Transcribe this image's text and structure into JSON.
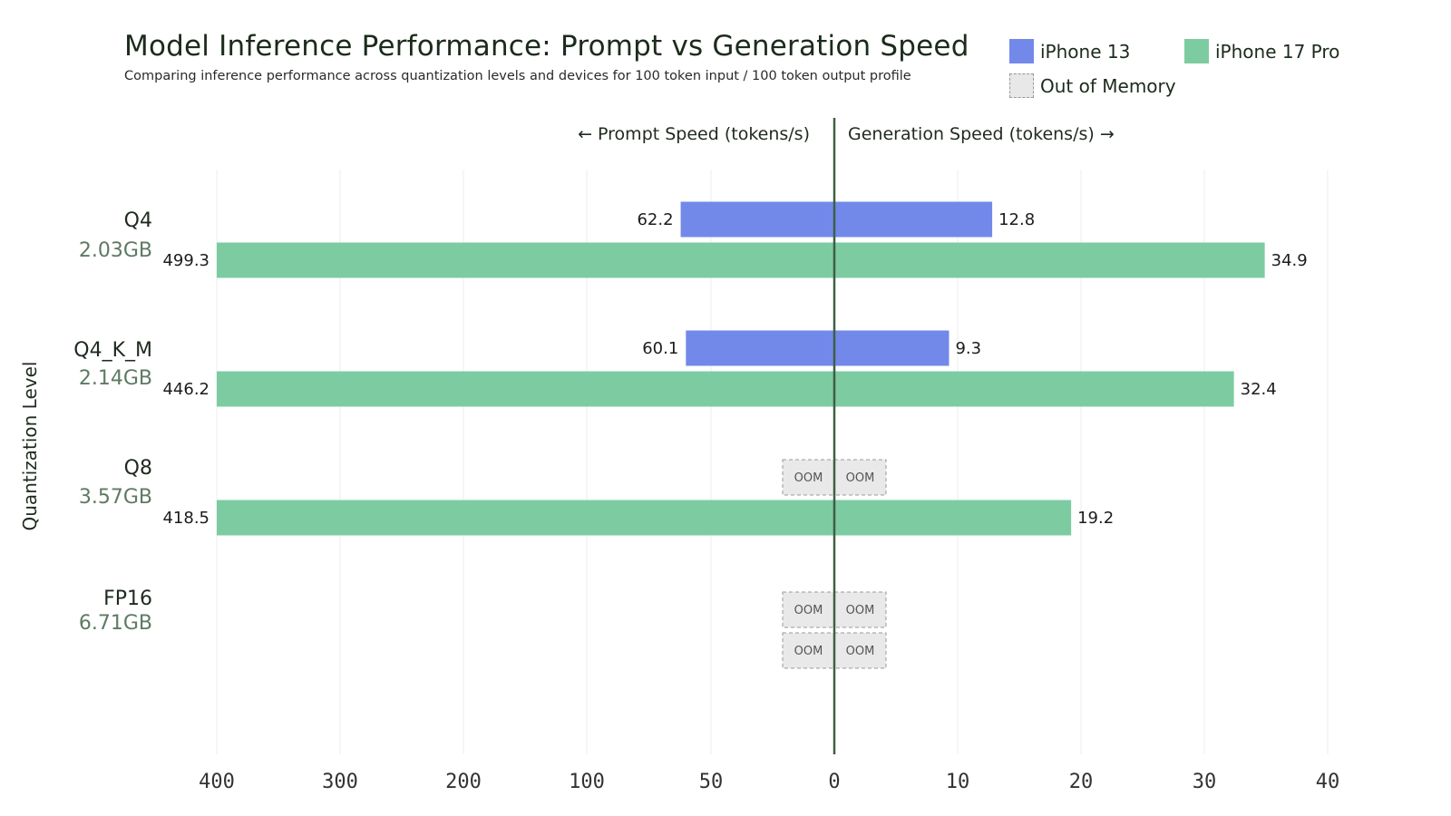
{
  "chart_data": {
    "type": "bar",
    "orientation": "horizontal-diverging",
    "title": "Model Inference Performance: Prompt vs Generation Speed",
    "subtitle": "Comparing inference performance across quantization levels and devices for 100 token input / 100 token output profile",
    "left_axis_label": "← Prompt Speed (tokens/s)",
    "right_axis_label": "Generation Speed (tokens/s) →",
    "ylabel": "Quantization Level",
    "left_ticks": [
      "400",
      "300",
      "200",
      "100",
      "50",
      "0"
    ],
    "right_ticks": [
      "10",
      "20",
      "30",
      "40"
    ],
    "left_scale_note": "piecewise: 0–100 and 100–400 segments",
    "right_xlim": [
      0,
      40
    ],
    "oom_label": "OOM",
    "categories": [
      {
        "name": "Q4",
        "size": "2.03GB"
      },
      {
        "name": "Q4_K_M",
        "size": "2.14GB"
      },
      {
        "name": "Q8",
        "size": "3.57GB"
      },
      {
        "name": "FP16",
        "size": "6.71GB"
      }
    ],
    "series": [
      {
        "name": "iPhone 13",
        "color": "#7289ea",
        "prompt": [
          62.2,
          60.1,
          null,
          null
        ],
        "generation": [
          12.8,
          9.3,
          null,
          null
        ],
        "prompt_labels": [
          "62.2",
          "60.1",
          "",
          ""
        ],
        "generation_labels": [
          "12.8",
          "9.3",
          "",
          ""
        ]
      },
      {
        "name": "iPhone 17 Pro",
        "color": "#7dcca1",
        "prompt": [
          499.3,
          446.2,
          418.5,
          null
        ],
        "generation": [
          34.9,
          32.4,
          19.2,
          null
        ],
        "prompt_labels": [
          "499.3",
          "446.2",
          "418.5",
          ""
        ],
        "generation_labels": [
          "34.9",
          "32.4",
          "19.2",
          ""
        ]
      }
    ],
    "legend": [
      {
        "label": "iPhone 13",
        "color": "#7289ea"
      },
      {
        "label": "iPhone 17 Pro",
        "color": "#7dcca1"
      },
      {
        "label": "Out of Memory",
        "color": "#e8e8e8"
      }
    ]
  }
}
